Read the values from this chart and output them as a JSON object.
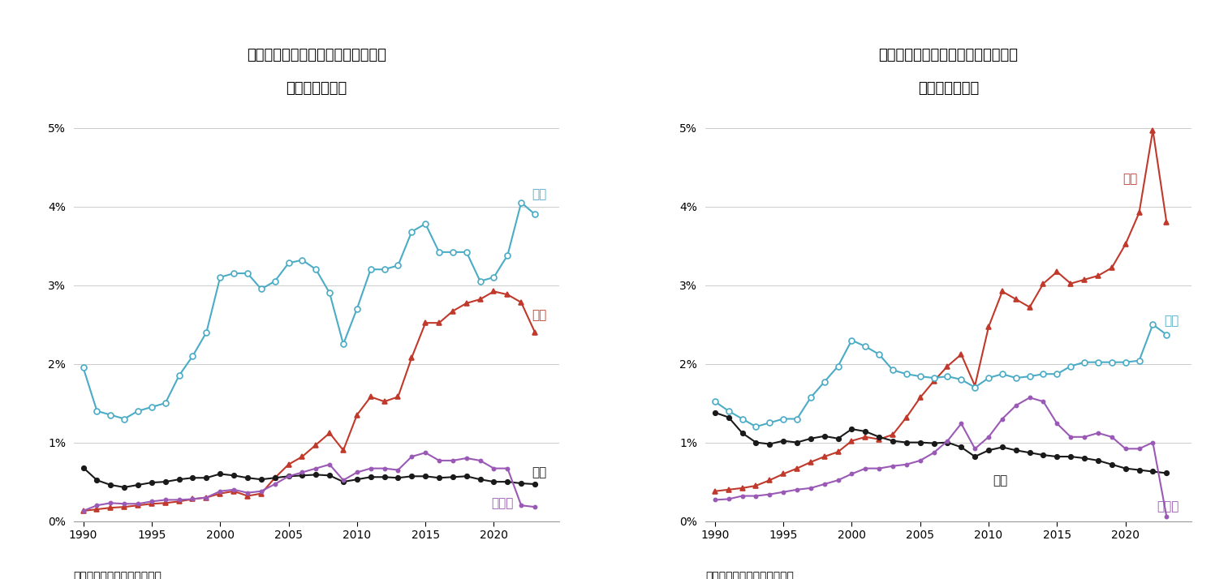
{
  "title1_line1": "図表４　ドイツの国・地域別輸出額",
  "title1_line2": "（対ＧＤＰ比）",
  "title2_line1": "図表５　ドイツの国・地域別輸入額",
  "title2_line2": "（対ＧＤＰ比）",
  "source": "（資料）　ドイツ連邦統計局",
  "years": [
    1990,
    1991,
    1992,
    1993,
    1994,
    1995,
    1996,
    1997,
    1998,
    1999,
    2000,
    2001,
    2002,
    2003,
    2004,
    2005,
    2006,
    2007,
    2008,
    2009,
    2010,
    2011,
    2012,
    2013,
    2014,
    2015,
    2016,
    2017,
    2018,
    2019,
    2020,
    2021,
    2022,
    2023
  ],
  "export_usa": [
    1.95,
    1.4,
    1.35,
    1.3,
    1.4,
    1.45,
    1.5,
    1.85,
    2.1,
    2.4,
    3.1,
    3.15,
    3.15,
    2.95,
    3.05,
    3.28,
    3.32,
    3.2,
    2.9,
    2.25,
    2.7,
    3.2,
    3.2,
    3.25,
    3.68,
    3.78,
    3.42,
    3.42,
    3.42,
    3.05,
    3.1,
    3.38,
    4.05,
    3.9
  ],
  "export_china": [
    0.13,
    0.15,
    0.17,
    0.18,
    0.2,
    0.22,
    0.23,
    0.25,
    0.28,
    0.3,
    0.35,
    0.38,
    0.32,
    0.35,
    0.55,
    0.72,
    0.82,
    0.97,
    1.12,
    0.9,
    1.35,
    1.58,
    1.52,
    1.58,
    2.08,
    2.52,
    2.52,
    2.67,
    2.77,
    2.82,
    2.92,
    2.88,
    2.78,
    2.4
  ],
  "export_japan": [
    0.68,
    0.52,
    0.46,
    0.43,
    0.46,
    0.49,
    0.5,
    0.53,
    0.55,
    0.55,
    0.6,
    0.58,
    0.55,
    0.53,
    0.55,
    0.57,
    0.58,
    0.59,
    0.58,
    0.5,
    0.53,
    0.56,
    0.56,
    0.55,
    0.57,
    0.57,
    0.55,
    0.56,
    0.57,
    0.53,
    0.5,
    0.5,
    0.48,
    0.47
  ],
  "export_russia": [
    0.13,
    0.2,
    0.23,
    0.22,
    0.22,
    0.25,
    0.27,
    0.27,
    0.28,
    0.3,
    0.38,
    0.4,
    0.36,
    0.38,
    0.47,
    0.57,
    0.62,
    0.67,
    0.72,
    0.52,
    0.62,
    0.67,
    0.67,
    0.65,
    0.82,
    0.87,
    0.77,
    0.77,
    0.8,
    0.77,
    0.67,
    0.67,
    0.2,
    0.18
  ],
  "import_china": [
    0.38,
    0.4,
    0.42,
    0.45,
    0.52,
    0.6,
    0.67,
    0.75,
    0.82,
    0.88,
    1.02,
    1.07,
    1.04,
    1.1,
    1.32,
    1.57,
    1.78,
    1.97,
    2.12,
    1.72,
    2.47,
    2.92,
    2.82,
    2.72,
    3.02,
    3.17,
    3.02,
    3.07,
    3.12,
    3.22,
    3.52,
    3.92,
    4.97,
    3.8
  ],
  "import_usa": [
    1.52,
    1.4,
    1.3,
    1.2,
    1.25,
    1.3,
    1.3,
    1.57,
    1.77,
    1.97,
    2.3,
    2.22,
    2.12,
    1.92,
    1.87,
    1.84,
    1.82,
    1.84,
    1.8,
    1.7,
    1.82,
    1.87,
    1.82,
    1.84,
    1.87,
    1.87,
    1.97,
    2.02,
    2.02,
    2.02,
    2.02,
    2.04,
    2.5,
    2.37
  ],
  "import_japan": [
    1.38,
    1.32,
    1.12,
    1.0,
    0.98,
    1.02,
    1.0,
    1.05,
    1.08,
    1.05,
    1.17,
    1.14,
    1.07,
    1.02,
    1.0,
    1.0,
    0.99,
    1.0,
    0.94,
    0.82,
    0.9,
    0.94,
    0.9,
    0.87,
    0.84,
    0.82,
    0.82,
    0.8,
    0.77,
    0.72,
    0.67,
    0.65,
    0.63,
    0.61
  ],
  "import_russia": [
    0.27,
    0.28,
    0.32,
    0.32,
    0.34,
    0.37,
    0.4,
    0.42,
    0.47,
    0.52,
    0.6,
    0.67,
    0.67,
    0.7,
    0.72,
    0.77,
    0.87,
    1.02,
    1.24,
    0.92,
    1.07,
    1.3,
    1.47,
    1.57,
    1.52,
    1.24,
    1.07,
    1.07,
    1.12,
    1.07,
    0.92,
    0.92,
    1.0,
    0.06
  ],
  "color_usa": "#4BACC6",
  "color_china": "#C0392B",
  "color_japan": "#1A1A1A",
  "color_russia": "#9B59B6",
  "ylim": [
    0,
    5.3
  ],
  "yticks": [
    0,
    1,
    2,
    3,
    4,
    5
  ],
  "xticks": [
    1990,
    1995,
    2000,
    2005,
    2010,
    2015,
    2020
  ]
}
